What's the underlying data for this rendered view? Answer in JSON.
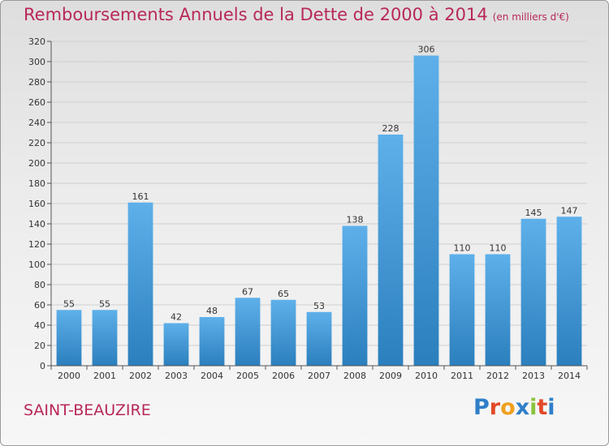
{
  "header": {
    "title": "Remboursements Annuels de la Dette de 2000 à 2014",
    "unit": "(en milliers d'€)"
  },
  "footer": {
    "location": "SAINT-BEAUZIRE",
    "logo": "Proxiti",
    "logo_colors": [
      "#2f7fc8",
      "#e24a2a",
      "#f0a020",
      "#2f7fc8",
      "#8ac43c",
      "#e24a2a",
      "#2f7fc8"
    ]
  },
  "colors": {
    "bar_light": "#5eb0ea",
    "bar_dark": "#2b7fbd",
    "text_accent": "#b8285a"
  },
  "chart_data": {
    "type": "bar",
    "title": "Remboursements Annuels de la Dette de 2000 à 2014",
    "xlabel": "",
    "ylabel": "",
    "ylim": [
      0,
      320
    ],
    "yticks": [
      0,
      20,
      40,
      60,
      80,
      100,
      120,
      140,
      160,
      180,
      200,
      220,
      240,
      260,
      280,
      300,
      320
    ],
    "grid": true,
    "categories": [
      "2000",
      "2001",
      "2002",
      "2003",
      "2004",
      "2005",
      "2006",
      "2007",
      "2008",
      "2009",
      "2010",
      "2011",
      "2012",
      "2013",
      "2014"
    ],
    "values": [
      55,
      55,
      161,
      42,
      48,
      67,
      65,
      53,
      138,
      228,
      306,
      110,
      110,
      145,
      147
    ]
  }
}
